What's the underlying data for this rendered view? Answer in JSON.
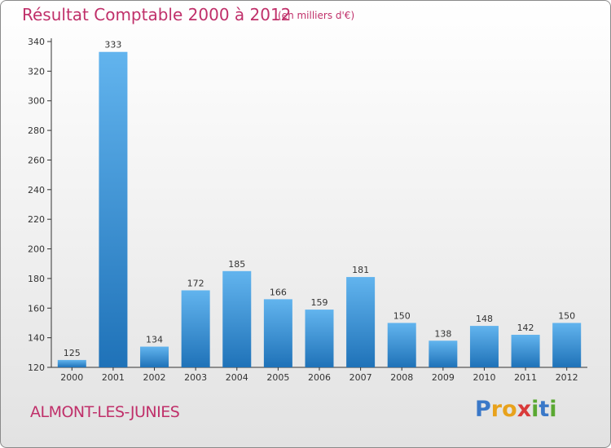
{
  "title": "Résultat Comptable 2000 à 2012",
  "subtitle": "(en milliers d'€)",
  "commune": "ALMONT-LES-JUNIES",
  "logo": {
    "text": "Proxiti",
    "letters": [
      {
        "ch": "P",
        "color": "#3a78c8"
      },
      {
        "ch": "r",
        "color": "#e8a21c"
      },
      {
        "ch": "o",
        "color": "#e8a21c"
      },
      {
        "ch": "x",
        "color": "#d93a3a"
      },
      {
        "ch": "i",
        "color": "#5aa832"
      },
      {
        "ch": "t",
        "color": "#3a78c8"
      },
      {
        "ch": "i",
        "color": "#5aa832"
      }
    ]
  },
  "colors": {
    "bar_light": "#62b4ee",
    "bar_dark": "#1f72b8",
    "accent": "#c0306a"
  },
  "chart_data": {
    "type": "bar",
    "categories": [
      "2000",
      "2001",
      "2002",
      "2003",
      "2004",
      "2005",
      "2006",
      "2007",
      "2008",
      "2009",
      "2010",
      "2011",
      "2012"
    ],
    "values": [
      125,
      333,
      134,
      172,
      185,
      166,
      159,
      181,
      150,
      138,
      148,
      142,
      150
    ],
    "ylim": [
      120,
      340
    ],
    "yticks": [
      120,
      140,
      160,
      180,
      200,
      220,
      240,
      260,
      280,
      300,
      320,
      340
    ],
    "grid": false,
    "title": "Résultat Comptable 2000 à 2012",
    "ylabel": "",
    "xlabel": ""
  }
}
